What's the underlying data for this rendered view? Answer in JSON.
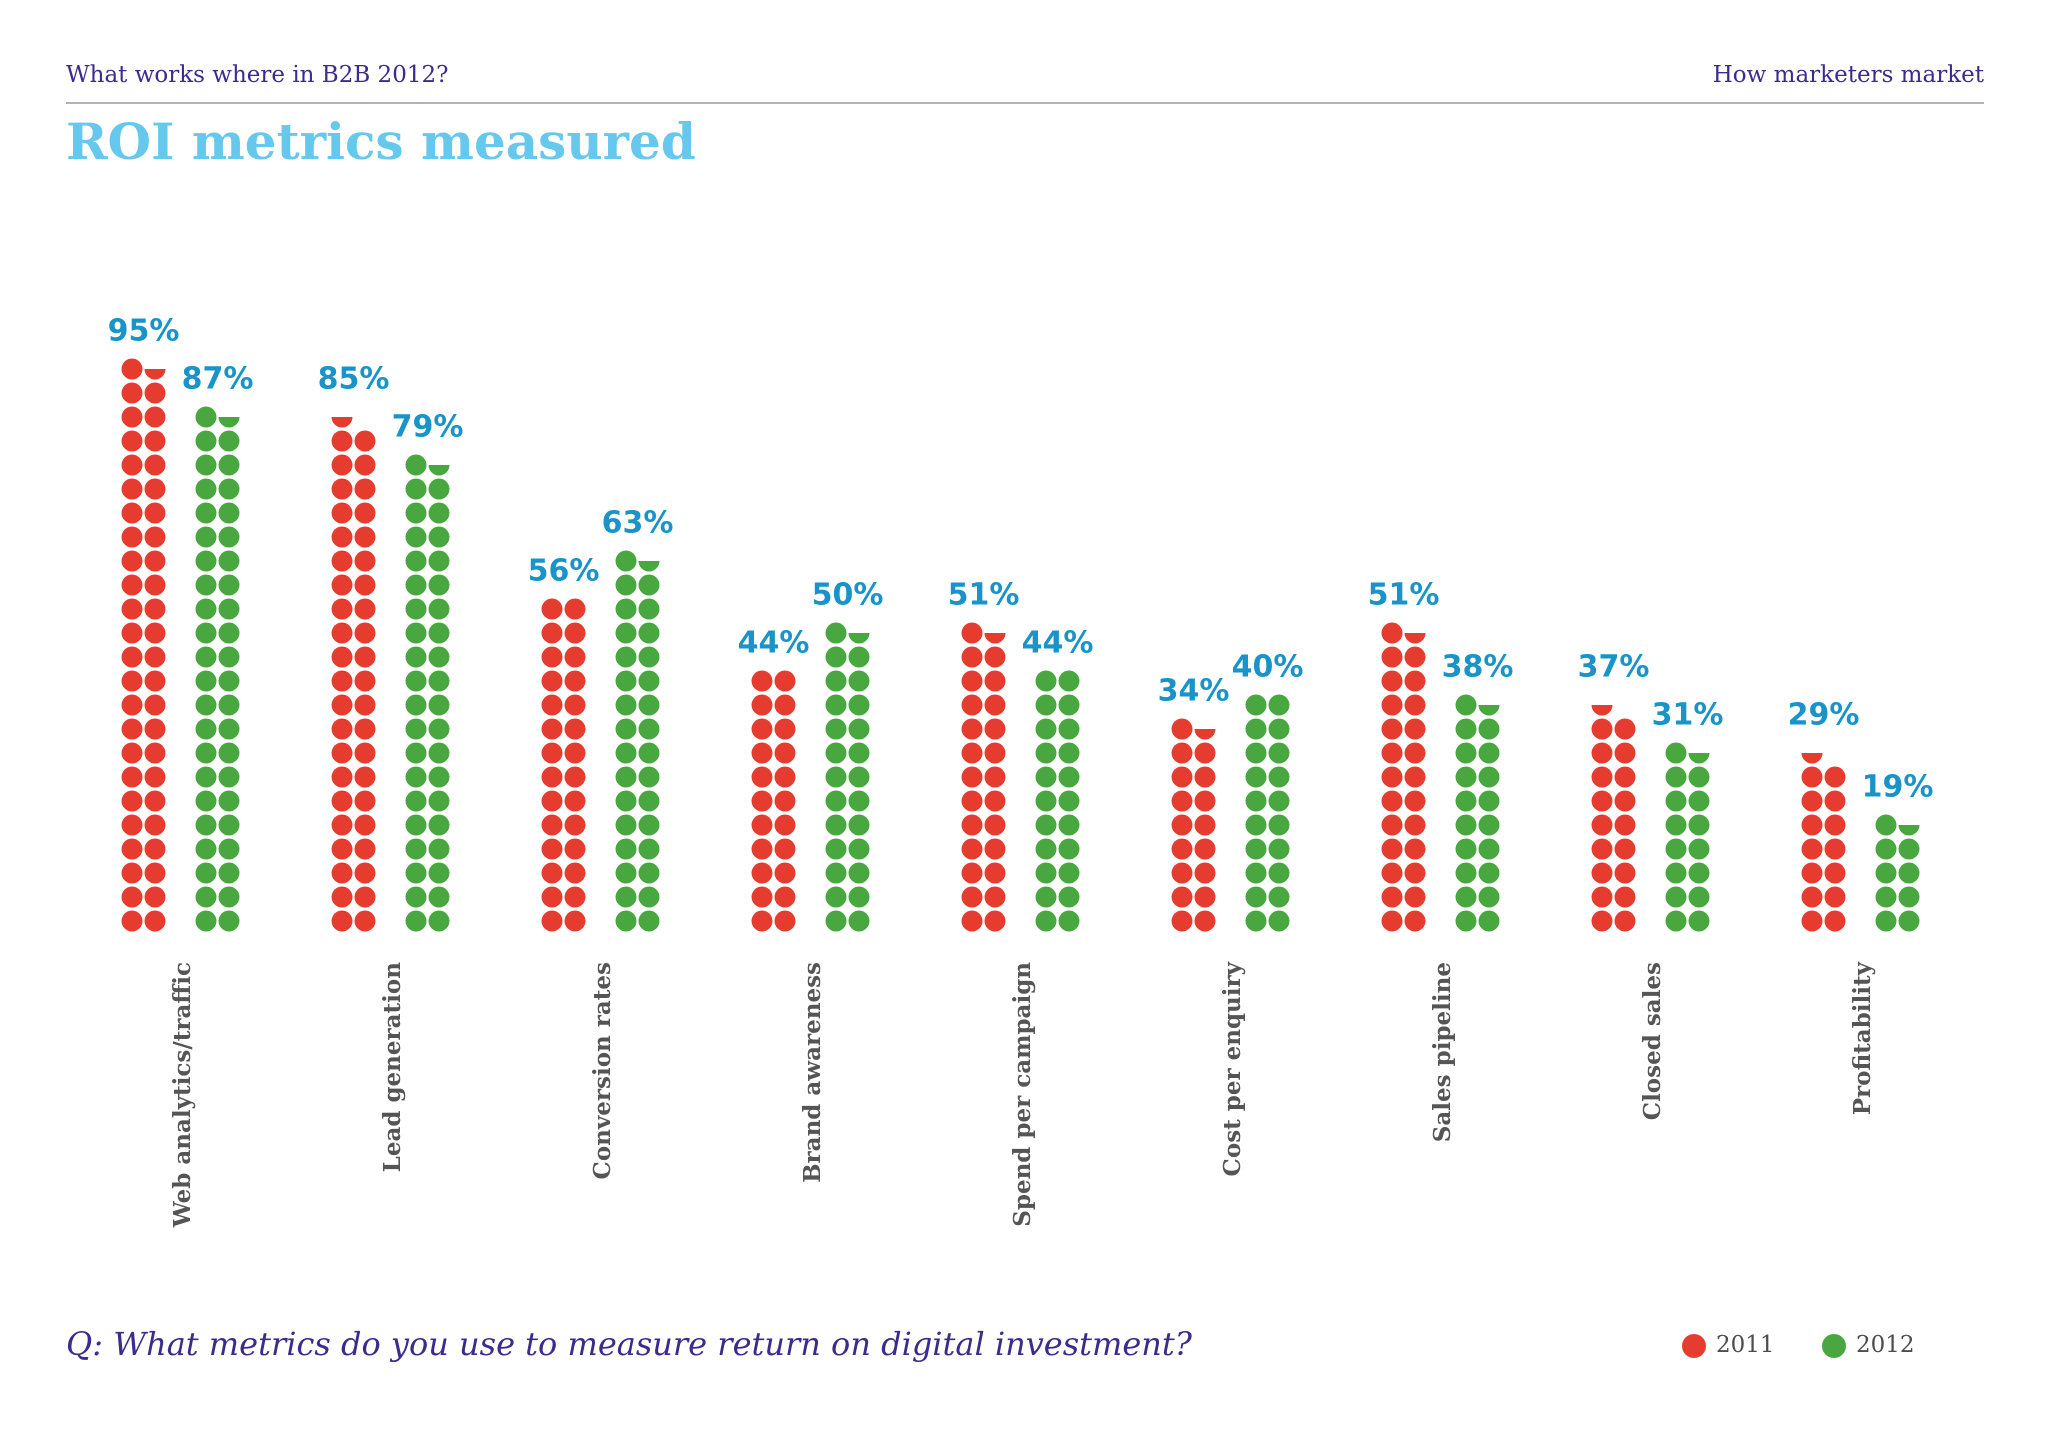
{
  "header": {
    "left_title": "What works where in B2B 2012?",
    "right_title": "How marketers market"
  },
  "page_title": "ROI metrics measured",
  "question": "Q: What metrics do you use to measure return on digital investment?",
  "legend": [
    {
      "label": "2011",
      "color": "#e63c2f"
    },
    {
      "label": "2012",
      "color": "#48a83f"
    }
  ],
  "colors": {
    "value_label": "#1a94c8",
    "category_label": "#555555"
  },
  "chart_data": {
    "type": "bar",
    "style": "pictogram-dots",
    "categories": [
      "Web analytics/traffic",
      "Lead generation",
      "Conversion rates",
      "Brand awareness",
      "Spend per campaign",
      "Cost per enquiry",
      "Sales pipeline",
      "Closed sales",
      "Profitability"
    ],
    "series": [
      {
        "name": "2011",
        "color": "#e63c2f",
        "values": [
          95,
          85,
          56,
          44,
          51,
          34,
          51,
          37,
          29
        ]
      },
      {
        "name": "2012",
        "color": "#48a83f",
        "values": [
          87,
          79,
          63,
          50,
          44,
          40,
          38,
          31,
          19
        ]
      }
    ],
    "value_labels": [
      [
        "95%",
        "87%"
      ],
      [
        "85%",
        "79%"
      ],
      [
        "56%",
        "63%"
      ],
      [
        "44%",
        "50%"
      ],
      [
        "51%",
        "44%"
      ],
      [
        "34%",
        "40%"
      ],
      [
        "51%",
        "38%"
      ],
      [
        "37%",
        "31%"
      ],
      [
        "29%",
        "19%"
      ]
    ],
    "grid": false,
    "legend_position": "bottom-right"
  }
}
